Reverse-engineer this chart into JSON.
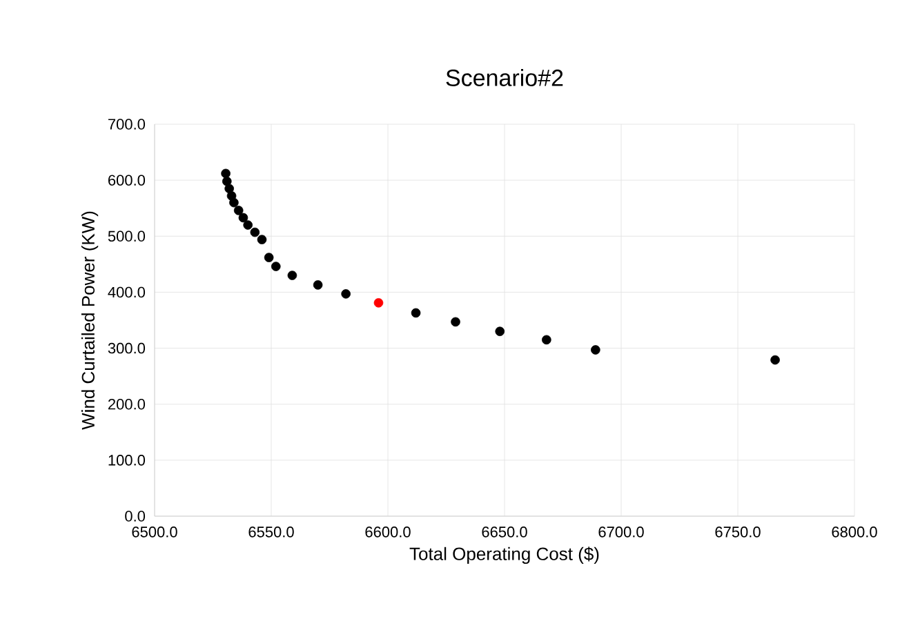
{
  "chart_data": {
    "type": "scatter",
    "title": "Scenario#2",
    "xlabel": "Total Operating Cost ($)",
    "ylabel": "Wind Curtailed Power (KW)",
    "xlim": [
      6500,
      6800
    ],
    "xticks": [
      {
        "value": 6500,
        "label": "6500.0"
      },
      {
        "value": 6550,
        "label": "6550.0"
      },
      {
        "value": 6600,
        "label": "6600.0"
      },
      {
        "value": 6650,
        "label": "6650.0"
      },
      {
        "value": 6700,
        "label": "6700.0"
      },
      {
        "value": 6750,
        "label": "6750.0"
      },
      {
        "value": 6800,
        "label": "6800.0"
      }
    ],
    "ylim": [
      0,
      700
    ],
    "yticks": [
      {
        "value": 0,
        "label": "0.0"
      },
      {
        "value": 100,
        "label": "100.0"
      },
      {
        "value": 200,
        "label": "200.0"
      },
      {
        "value": 300,
        "label": "300.0"
      },
      {
        "value": 400,
        "label": "400.0"
      },
      {
        "value": 500,
        "label": "500.0"
      },
      {
        "value": 600,
        "label": "600.0"
      },
      {
        "value": 700,
        "label": "700.0"
      }
    ],
    "grid": true,
    "marker": "circle",
    "series": [
      {
        "color": "#000000",
        "x": [
          6530.5,
          6531,
          6532,
          6533,
          6534,
          6536,
          6538,
          6540,
          6543,
          6546,
          6549,
          6552,
          6559,
          6570,
          6582,
          6612,
          6629,
          6648,
          6668,
          6689,
          6766
        ],
        "values": [
          612,
          598,
          585,
          572,
          560,
          546,
          533,
          520,
          507,
          494,
          462,
          446,
          430,
          413,
          397,
          363,
          347,
          330,
          315,
          297,
          279
        ]
      },
      {
        "color": "#ff0000",
        "x": [
          6596
        ],
        "values": [
          381
        ]
      }
    ]
  }
}
